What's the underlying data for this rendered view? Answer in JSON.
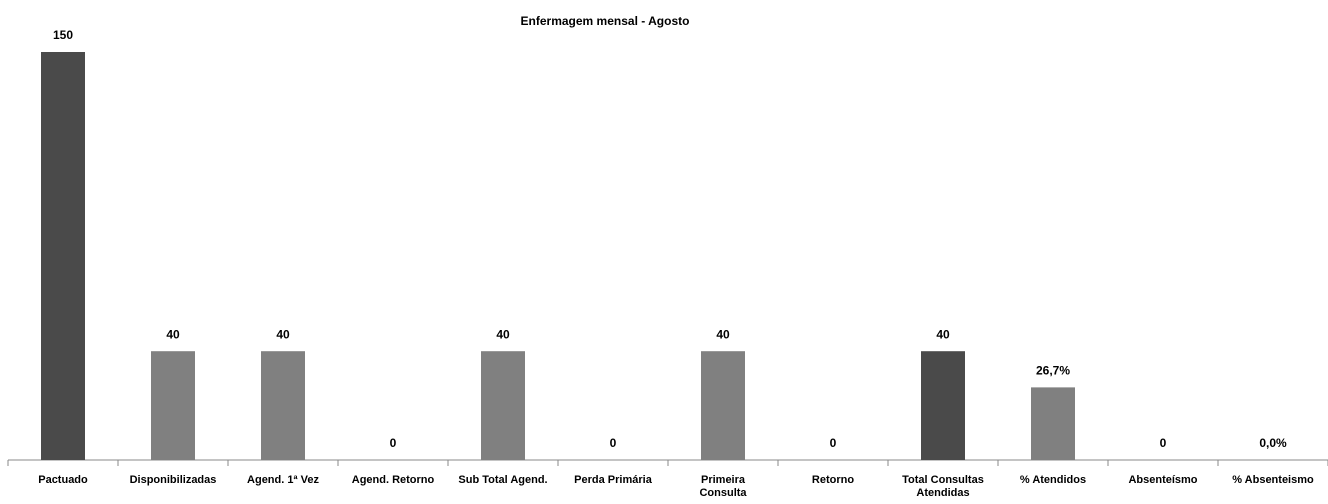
{
  "chart_data": {
    "type": "bar",
    "title": "Enfermagem mensal - Agosto",
    "categories": [
      "Pactuado",
      "Disponibilizadas",
      "Agend. 1ª Vez",
      "Agend. Retorno",
      "Sub Total Agend.",
      "Perda Primária",
      "Primeira\nConsulta",
      "Retorno",
      "Total Consultas\nAtendidas",
      "% Atendidos",
      "Absenteísmo",
      "% Absenteismo"
    ],
    "values": [
      150,
      40,
      40,
      0,
      40,
      0,
      40,
      0,
      40,
      26.7,
      0,
      0
    ],
    "value_labels": [
      "150",
      "40",
      "40",
      "0",
      "40",
      "0",
      "40",
      "0",
      "40",
      "26,7%",
      "0",
      "0,0%"
    ],
    "colors": [
      "#4a4a4a",
      "#808080",
      "#808080",
      "#808080",
      "#808080",
      "#808080",
      "#808080",
      "#808080",
      "#4a4a4a",
      "#808080",
      "#808080",
      "#808080"
    ],
    "ylim": [
      0,
      150
    ]
  }
}
